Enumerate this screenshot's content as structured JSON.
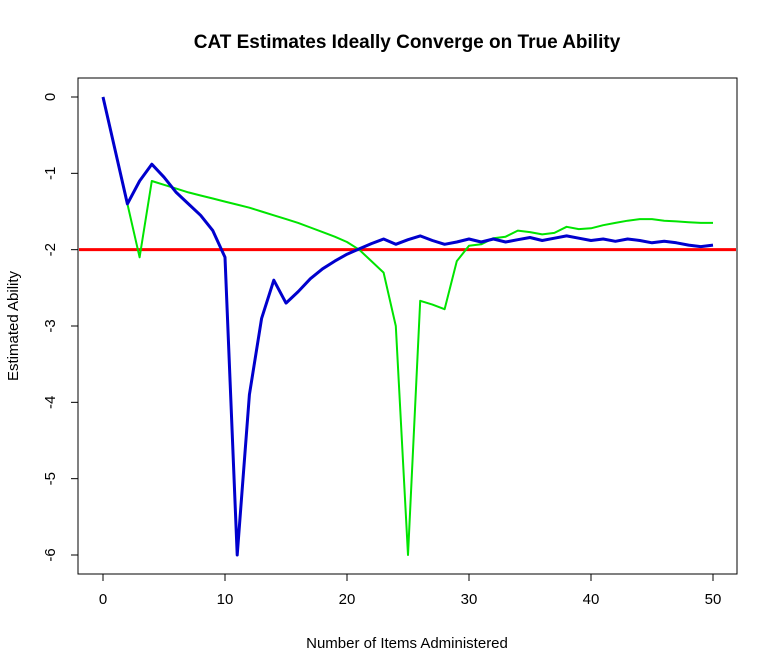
{
  "chart_data": {
    "type": "line",
    "title": "CAT Estimates Ideally Converge on True Ability",
    "xlabel": "Number of Items Administered",
    "ylabel": "Estimated Ability",
    "xlim": [
      0,
      50
    ],
    "ylim": [
      -6,
      0
    ],
    "xticks": [
      0,
      10,
      20,
      30,
      40,
      50
    ],
    "yticks": [
      0,
      -1,
      -2,
      -3,
      -4,
      -5,
      -6
    ],
    "grid": false,
    "legend": "none",
    "series": [
      {
        "color": "#0000CD",
        "line_width": 3,
        "x": [
          0,
          1,
          2,
          3,
          4,
          5,
          6,
          7,
          8,
          9,
          10,
          11,
          12,
          13,
          14,
          15,
          16,
          17,
          18,
          19,
          20,
          21,
          22,
          23,
          24,
          25,
          26,
          27,
          28,
          29,
          30,
          31,
          32,
          33,
          34,
          35,
          36,
          37,
          38,
          39,
          40,
          41,
          42,
          43,
          44,
          45,
          46,
          47,
          48,
          49,
          50
        ],
        "y": [
          0,
          -0.7,
          -1.4,
          -1.1,
          -0.88,
          -1.05,
          -1.25,
          -1.4,
          -1.55,
          -1.75,
          -2.1,
          -6.0,
          -3.9,
          -2.9,
          -2.4,
          -2.7,
          -2.55,
          -2.38,
          -2.25,
          -2.15,
          -2.06,
          -1.99,
          -1.92,
          -1.86,
          -1.93,
          -1.87,
          -1.82,
          -1.88,
          -1.93,
          -1.9,
          -1.86,
          -1.9,
          -1.86,
          -1.9,
          -1.87,
          -1.84,
          -1.88,
          -1.85,
          -1.82,
          -1.85,
          -1.88,
          -1.86,
          -1.89,
          -1.86,
          -1.88,
          -1.91,
          -1.89,
          -1.91,
          -1.94,
          -1.96,
          -1.94
        ]
      },
      {
        "color": "#00E400",
        "line_width": 2,
        "x": [
          0,
          1,
          2,
          3,
          4,
          5,
          6,
          7,
          8,
          9,
          10,
          11,
          12,
          13,
          14,
          15,
          16,
          17,
          18,
          19,
          20,
          21,
          22,
          23,
          24,
          25,
          26,
          27,
          28,
          29,
          30,
          31,
          32,
          33,
          34,
          35,
          36,
          37,
          38,
          39,
          40,
          41,
          42,
          43,
          44,
          45,
          46,
          47,
          48,
          49,
          50
        ],
        "y": [
          0,
          -0.7,
          -1.4,
          -2.1,
          -1.1,
          -1.15,
          -1.2,
          -1.25,
          -1.29,
          -1.33,
          -1.37,
          -1.41,
          -1.45,
          -1.5,
          -1.55,
          -1.6,
          -1.65,
          -1.71,
          -1.77,
          -1.83,
          -1.9,
          -2.0,
          -2.15,
          -2.3,
          -3.0,
          -6.0,
          -2.67,
          -2.72,
          -2.78,
          -2.15,
          -1.95,
          -1.93,
          -1.85,
          -1.83,
          -1.75,
          -1.77,
          -1.8,
          -1.78,
          -1.7,
          -1.73,
          -1.72,
          -1.68,
          -1.65,
          -1.62,
          -1.6,
          -1.6,
          -1.62,
          -1.63,
          -1.64,
          -1.65,
          -1.65
        ]
      }
    ],
    "reference_lines": [
      {
        "orientation": "horizontal",
        "y": -2,
        "color": "#FF0000",
        "line_width": 3
      }
    ]
  }
}
